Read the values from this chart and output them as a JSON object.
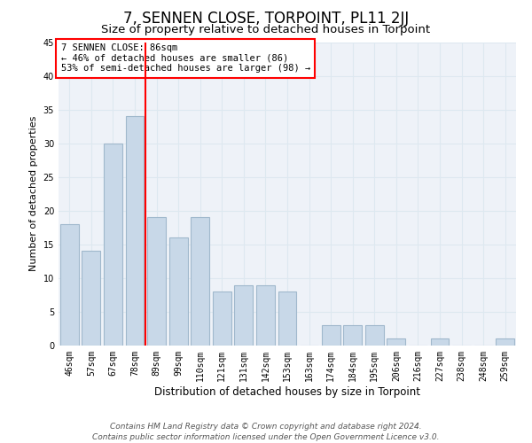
{
  "title": "7, SENNEN CLOSE, TORPOINT, PL11 2JJ",
  "subtitle": "Size of property relative to detached houses in Torpoint",
  "xlabel": "Distribution of detached houses by size in Torpoint",
  "ylabel": "Number of detached properties",
  "categories": [
    "46sqm",
    "57sqm",
    "67sqm",
    "78sqm",
    "89sqm",
    "99sqm",
    "110sqm",
    "121sqm",
    "131sqm",
    "142sqm",
    "153sqm",
    "163sqm",
    "174sqm",
    "184sqm",
    "195sqm",
    "206sqm",
    "216sqm",
    "227sqm",
    "238sqm",
    "248sqm",
    "259sqm"
  ],
  "values": [
    18,
    14,
    30,
    34,
    19,
    16,
    19,
    8,
    9,
    9,
    8,
    0,
    3,
    3,
    3,
    1,
    0,
    1,
    0,
    0,
    1
  ],
  "bar_color": "#c8d8e8",
  "bar_edge_color": "#a0b8cc",
  "bar_linewidth": 0.8,
  "vline_position": 3.5,
  "vline_color": "red",
  "vline_linewidth": 1.5,
  "annotation_text": "7 SENNEN CLOSE: 86sqm\n← 46% of detached houses are smaller (86)\n53% of semi-detached houses are larger (98) →",
  "annotation_box_color": "white",
  "annotation_box_edge": "red",
  "ylim": [
    0,
    45
  ],
  "yticks": [
    0,
    5,
    10,
    15,
    20,
    25,
    30,
    35,
    40,
    45
  ],
  "grid_color": "#dde8f0",
  "bg_color": "#eef2f8",
  "footer": "Contains HM Land Registry data © Crown copyright and database right 2024.\nContains public sector information licensed under the Open Government Licence v3.0.",
  "title_fontsize": 12,
  "subtitle_fontsize": 9.5,
  "xlabel_fontsize": 8.5,
  "ylabel_fontsize": 8,
  "tick_fontsize": 7,
  "annotation_fontsize": 7.5,
  "footer_fontsize": 6.5
}
